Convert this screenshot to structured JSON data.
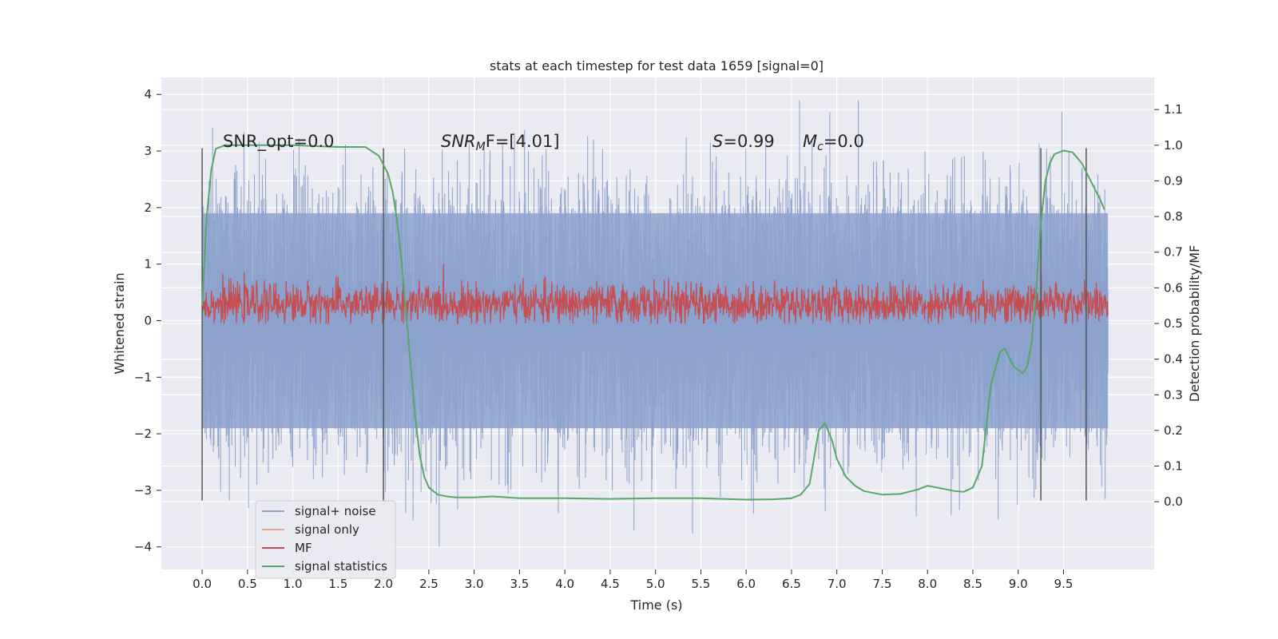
{
  "chart_data": {
    "type": "line",
    "title": "stats at each timestep for test data 1659 [signal=0]",
    "xlabel": "Time (s)",
    "ylabel": "Whitened strain",
    "y2label": "Detection probability/MF",
    "xlim": [
      -0.45,
      10.5
    ],
    "ylim": [
      -4.4,
      4.3
    ],
    "y2lim": [
      -0.19,
      1.19
    ],
    "grid": true,
    "legend_position": "lower-left",
    "x_ticks": [
      "0.0",
      "0.5",
      "1.0",
      "1.5",
      "2.0",
      "2.5",
      "3.0",
      "3.5",
      "4.0",
      "4.5",
      "5.0",
      "5.5",
      "6.0",
      "6.5",
      "7.0",
      "7.5",
      "8.0",
      "8.5",
      "9.0",
      "9.5"
    ],
    "y_ticks": [
      "4",
      "3",
      "2",
      "1",
      "0",
      "−1",
      "−2",
      "−3",
      "−4"
    ],
    "y2_ticks": [
      "1.1",
      "1.0",
      "0.9",
      "0.8",
      "0.7",
      "0.6",
      "0.5",
      "0.4",
      "0.3",
      "0.2",
      "0.1",
      "0.0"
    ],
    "annotations": {
      "snr_opt": "SNR_opt=0.0",
      "snr_mf_sym": "SNR",
      "snr_mf_sub": "M",
      "snr_mf_tail": "F=[4.01]",
      "s_sym": "S",
      "s_tail": "=0.99",
      "mc_sym": "M",
      "mc_sub": "c",
      "mc_tail": "=0.0"
    },
    "vertical_lines_x": [
      0.0,
      2.0,
      9.25,
      9.75
    ],
    "series": [
      {
        "name": "signal+ noise",
        "color": "#8da2cc",
        "amplitude_band": [
          -1.9,
          1.9
        ],
        "peak_max": 3.9,
        "peak_min": -4.0,
        "x_range": [
          0.0,
          9.99
        ]
      },
      {
        "name": "signal only",
        "color": "#e8a889",
        "values": []
      },
      {
        "name": "MF",
        "color": "#c44e52",
        "band_center": 0.3,
        "band_halfwidth": 0.25,
        "x_range": [
          0.0,
          9.99
        ]
      },
      {
        "name": "signal statistics",
        "color": "#55a868",
        "x": [
          0.0,
          0.05,
          0.1,
          0.15,
          0.25,
          0.5,
          1.0,
          1.5,
          1.8,
          1.95,
          2.05,
          2.1,
          2.15,
          2.2,
          2.25,
          2.3,
          2.35,
          2.4,
          2.45,
          2.5,
          2.55,
          2.6,
          2.7,
          2.8,
          3.0,
          3.2,
          3.5,
          4.0,
          4.5,
          5.0,
          5.5,
          6.0,
          6.3,
          6.5,
          6.6,
          6.7,
          6.8,
          6.87,
          6.95,
          7.0,
          7.1,
          7.2,
          7.3,
          7.5,
          7.7,
          7.9,
          8.0,
          8.1,
          8.3,
          8.4,
          8.5,
          8.6,
          8.7,
          8.8,
          8.85,
          8.95,
          9.05,
          9.1,
          9.15,
          9.2,
          9.25,
          9.3,
          9.35,
          9.4,
          9.5,
          9.6,
          9.7,
          9.8,
          9.9,
          9.95
        ],
        "y": [
          0.55,
          0.8,
          0.93,
          0.99,
          1.0,
          1.0,
          1.0,
          0.995,
          0.995,
          0.97,
          0.92,
          0.87,
          0.79,
          0.67,
          0.53,
          0.38,
          0.24,
          0.13,
          0.07,
          0.04,
          0.03,
          0.02,
          0.015,
          0.012,
          0.012,
          0.015,
          0.01,
          0.01,
          0.008,
          0.01,
          0.01,
          0.006,
          0.007,
          0.01,
          0.02,
          0.05,
          0.2,
          0.22,
          0.17,
          0.12,
          0.07,
          0.045,
          0.03,
          0.02,
          0.022,
          0.035,
          0.045,
          0.04,
          0.03,
          0.028,
          0.04,
          0.1,
          0.33,
          0.42,
          0.43,
          0.38,
          0.36,
          0.38,
          0.45,
          0.6,
          0.78,
          0.9,
          0.95,
          0.975,
          0.985,
          0.98,
          0.95,
          0.9,
          0.85,
          0.82
        ]
      }
    ]
  }
}
